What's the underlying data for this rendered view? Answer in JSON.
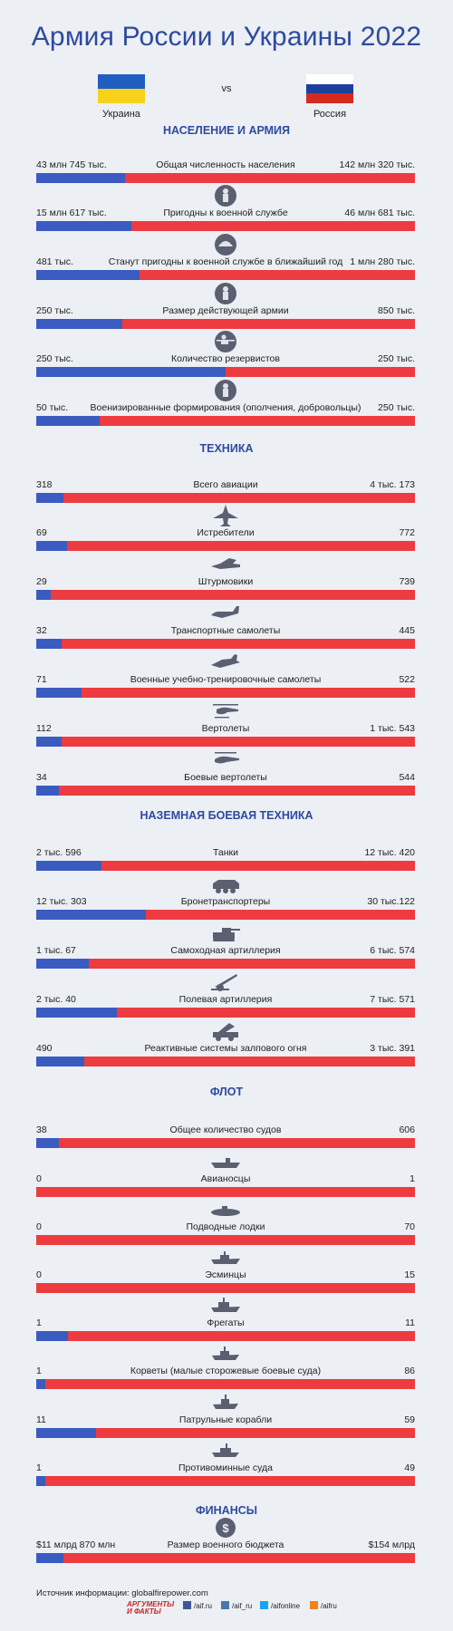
{
  "title": "Армия России и Украины 2022",
  "vs": "vs",
  "left_country": "Украина",
  "right_country": "Россия",
  "colors": {
    "ukraine_bar": "#3a5bc0",
    "russia_bar": "#ee3b3f",
    "flag_blue": "#1f5fbf",
    "flag_yellow": "#f8d21a",
    "flag_red": "#d52b1e",
    "accent": "#2e4a9e"
  },
  "sections": [
    {
      "title": "НАСЕЛЕНИЕ И АРМИЯ"
    },
    {
      "title": "ТЕХНИКА"
    },
    {
      "title": "НАЗЕМНАЯ БОЕВАЯ ТЕХНИКА"
    },
    {
      "title": "ФЛОТ"
    },
    {
      "title": "ФИНАНСЫ"
    }
  ],
  "source": "Источник информации: globalfirepower.com",
  "brand": {
    "name": "АРГУМЕНТЫ И ФАКТЫ",
    "links": [
      "/aif.ru",
      "/aif_ru",
      "/aifonline",
      "/aifru"
    ]
  },
  "chart_data": {
    "type": "bar",
    "series": [
      {
        "name": "Украина"
      },
      {
        "name": "Россия"
      }
    ],
    "rows": [
      {
        "section": "НАСЕЛЕНИЕ И АРМИЯ",
        "label": "Общая численность населения",
        "ua_text": "43 млн 745 тыс.",
        "ru_text": "142 млн 320 тыс.",
        "ua": 43745000,
        "ru": 142320000,
        "icon": ""
      },
      {
        "section": "НАСЕЛЕНИЕ И АРМИЯ",
        "label": "Пригодны к военной службе",
        "ua_text": "15 млн 617 тыс.",
        "ru_text": "46 млн 681 тыс.",
        "ua": 15617000,
        "ru": 46681000,
        "icon": "soldier-icon"
      },
      {
        "section": "НАСЕЛЕНИЕ И АРМИЯ",
        "label": "Станут пригодны к военной службе в ближайший год",
        "ua_text": "481 тыс.",
        "ru_text": "1 млн 280 тыс.",
        "ua": 481000,
        "ru": 1280000,
        "icon": "helmet-icon"
      },
      {
        "section": "НАСЕЛЕНИЕ И АРМИЯ",
        "label": "Размер действующей армии",
        "ua_text": "250 тыс.",
        "ru_text": "850 тыс.",
        "ua": 250000,
        "ru": 850000,
        "icon": "soldier-icon"
      },
      {
        "section": "НАСЕЛЕНИЕ И АРМИЯ",
        "label": "Количество резервистов",
        "ua_text": "250 тыс.",
        "ru_text": "250 тыс.",
        "ua": 250000,
        "ru": 250000,
        "icon": "kneeling-soldier-icon"
      },
      {
        "section": "НАСЕЛЕНИЕ И АРМИЯ",
        "label": "Военизированные формирования (ополчения, добровольцы)",
        "ua_text": "50 тыс.",
        "ru_text": "250 тыс.",
        "ua": 50000,
        "ru": 250000,
        "icon": "soldier-icon"
      },
      {
        "section": "ТЕХНИКА",
        "label": "Всего авиации",
        "ua_text": "318",
        "ru_text": "4 тыс. 173",
        "ua": 318,
        "ru": 4173,
        "icon": ""
      },
      {
        "section": "ТЕХНИКА",
        "label": "Истребители",
        "ua_text": "69",
        "ru_text": "772",
        "ua": 69,
        "ru": 772,
        "icon": "fighter-jet-icon"
      },
      {
        "section": "ТЕХНИКА",
        "label": "Штурмовики",
        "ua_text": "29",
        "ru_text": "739",
        "ua": 29,
        "ru": 739,
        "icon": "attack-jet-icon"
      },
      {
        "section": "ТЕХНИКА",
        "label": "Транспортные самолеты",
        "ua_text": "32",
        "ru_text": "445",
        "ua": 32,
        "ru": 445,
        "icon": "transport-plane-icon"
      },
      {
        "section": "ТЕХНИКА",
        "label": "Военные учебно-тренировочные самолеты",
        "ua_text": "71",
        "ru_text": "522",
        "ua": 71,
        "ru": 522,
        "icon": "trainer-jet-icon"
      },
      {
        "section": "ТЕХНИКА",
        "label": "Вертолеты",
        "ua_text": "112",
        "ru_text": "1 тыс. 543",
        "ua": 112,
        "ru": 1543,
        "icon": "helicopter-icon"
      },
      {
        "section": "ТЕХНИКА",
        "label": "Боевые вертолеты",
        "ua_text": "34",
        "ru_text": "544",
        "ua": 34,
        "ru": 544,
        "icon": "attack-helicopter-icon"
      },
      {
        "section": "НАЗЕМНАЯ БОЕВАЯ ТЕХНИКА",
        "label": "Танки",
        "ua_text": "2 тыс. 596",
        "ru_text": "12 тыс. 420",
        "ua": 2596,
        "ru": 12420,
        "icon": ""
      },
      {
        "section": "НАЗЕМНАЯ БОЕВАЯ ТЕХНИКА",
        "label": "Бронетранспортеры",
        "ua_text": "12 тыс. 303",
        "ru_text": "30 тыс.122",
        "ua": 12303,
        "ru": 30122,
        "icon": "apc-icon"
      },
      {
        "section": "НАЗЕМНАЯ БОЕВАЯ ТЕХНИКА",
        "label": "Самоходная артиллерия",
        "ua_text": "1 тыс. 67",
        "ru_text": "6 тыс. 574",
        "ua": 1067,
        "ru": 6574,
        "icon": "self-propelled-gun-icon"
      },
      {
        "section": "НАЗЕМНАЯ БОЕВАЯ ТЕХНИКА",
        "label": "Полевая артиллерия",
        "ua_text": "2 тыс. 40",
        "ru_text": "7 тыс. 571",
        "ua": 2040,
        "ru": 7571,
        "icon": "field-artillery-icon"
      },
      {
        "section": "НАЗЕМНАЯ БОЕВАЯ ТЕХНИКА",
        "label": "Реактивные системы залпового огня",
        "ua_text": "490",
        "ru_text": "3 тыс. 391",
        "ua": 490,
        "ru": 3391,
        "icon": "rocket-launcher-icon"
      },
      {
        "section": "ФЛОТ",
        "label": "Общее количество судов",
        "ua_text": "38",
        "ru_text": "606",
        "ua": 38,
        "ru": 606,
        "icon": ""
      },
      {
        "section": "ФЛОТ",
        "label": "Авианосцы",
        "ua_text": "0",
        "ru_text": "1",
        "ua": 0,
        "ru": 1,
        "icon": "aircraft-carrier-icon"
      },
      {
        "section": "ФЛОТ",
        "label": "Подводные лодки",
        "ua_text": "0",
        "ru_text": "70",
        "ua": 0,
        "ru": 70,
        "icon": "submarine-icon"
      },
      {
        "section": "ФЛОТ",
        "label": "Эсминцы",
        "ua_text": "0",
        "ru_text": "15",
        "ua": 0,
        "ru": 15,
        "icon": "destroyer-icon"
      },
      {
        "section": "ФЛОТ",
        "label": "Фрегаты",
        "ua_text": "1",
        "ru_text": "11",
        "ua": 1,
        "ru": 11,
        "icon": "frigate-icon"
      },
      {
        "section": "ФЛОТ",
        "label": "Корветы (малые сторожевые боевые суда)",
        "ua_text": "1",
        "ru_text": "86",
        "ua": 1,
        "ru": 86,
        "icon": "corvette-icon"
      },
      {
        "section": "ФЛОТ",
        "label": "Патрульные корабли",
        "ua_text": "11",
        "ru_text": "59",
        "ua": 11,
        "ru": 59,
        "icon": "patrol-ship-icon"
      },
      {
        "section": "ФЛОТ",
        "label": "Противоминные суда",
        "ua_text": "1",
        "ru_text": "49",
        "ua": 1,
        "ru": 49,
        "icon": "minesweeper-icon"
      },
      {
        "section": "ФИНАНСЫ",
        "label": "Размер военного бюджета",
        "ua_text": "$11 млрд 870 млн",
        "ru_text": "$154 млрд",
        "ua": 11.87,
        "ru": 154,
        "icon": "money-icon"
      }
    ]
  }
}
